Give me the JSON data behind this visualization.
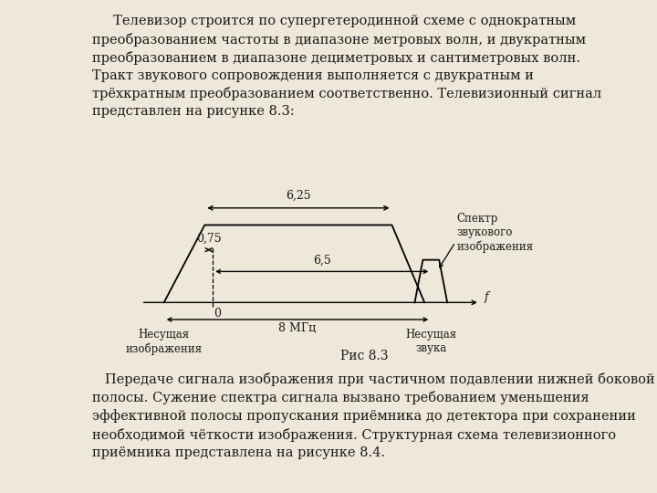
{
  "bg_color": "#ede8da",
  "text_color": "#1a1a1a",
  "top_text": "     Телевизор строится по супергетеродинной схеме с однократным\nпреобразованием частоты в диапазоне метровых волн, и двукратным\nпреобразованием в диапазоне дециметровых и сантиметровых волн.\nТракт звукового сопровождения выполняется с двукратным и\nтрёхкратным преобразованием соответственно. Телевизионный сигнал\nпредставлен на рисунке 8.3:",
  "bottom_text": "   Передаче сигнала изображения при частичном подавлении нижней боковой\nполосы. Сужение спектра сигнала вызвано требованием уменьшения\nэффективной полосы пропускания приёмника до детектора при сохранении\nнеобходимой чёткости изображения. Структурная схема телевизионного\nприёмника представлена на рисунке 8.4.",
  "fig_caption": "Рис 8.3",
  "label_625": "6,25",
  "label_075": "0,75",
  "label_65": "6,5",
  "label_8": "8 МГц",
  "label_f": "f",
  "label_0": "0",
  "label_nes_izobr": "Несущая\nизображения",
  "label_nes_zvuka": "Несущая\nзвука",
  "label_spektr": "Спектр\nзвукового\nизображения",
  "font_size_main": 10.5,
  "font_size_diagram": 9.0
}
